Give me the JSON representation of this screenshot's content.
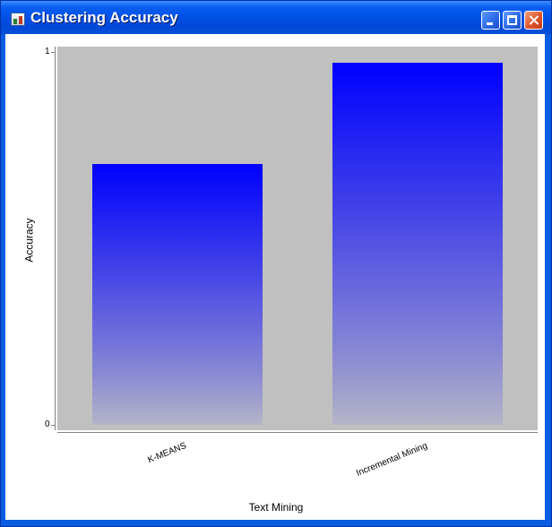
{
  "window": {
    "title": "Clustering Accuracy",
    "controls": {
      "minimize": "minimize",
      "maximize": "maximize",
      "close": "close"
    }
  },
  "colors": {
    "titlebar": "#0054e3",
    "plot_background": "#c0c0c0",
    "bar_top": "#0000ff",
    "bar_bottom": "#b4b4c8"
  },
  "chart_data": {
    "type": "bar",
    "categories": [
      "K-MEANS",
      "Incremental Mining"
    ],
    "values": [
      0.7,
      0.97
    ],
    "xlabel": "Text Mining",
    "ylabel": "Accuracy",
    "ylim": [
      0,
      1
    ],
    "yticks": [
      "0",
      "1"
    ],
    "grid": false,
    "legend": false
  }
}
